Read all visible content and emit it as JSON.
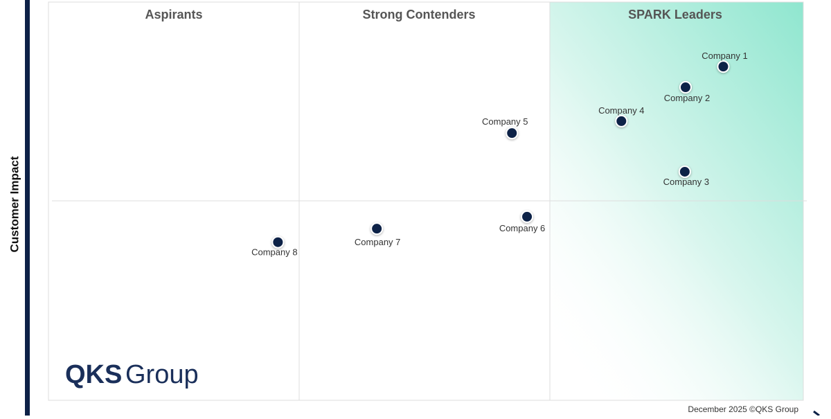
{
  "chart_data": {
    "type": "scatter",
    "quadrant_labels": [
      "Aspirants",
      "Strong Contenders",
      "SPARK Leaders"
    ],
    "y_label": "Customer Impact",
    "labels": [
      "Company 1",
      "Company 2",
      "Company 3",
      "Company 4",
      "Company 5",
      "Company 6",
      "Company 7",
      "Company 8"
    ],
    "x": [
      89.4,
      84.4,
      84.3,
      75.9,
      61.4,
      63.4,
      43.5,
      30.4
    ],
    "values": [
      83.8,
      78.6,
      57.4,
      70.1,
      67.1,
      46.1,
      43.1,
      39.7
    ],
    "color": "#0d2147",
    "xlim": [
      0,
      100
    ],
    "ylim": [
      0,
      100
    ]
  },
  "logo": {
    "primary": "QKS",
    "secondary": "Group"
  },
  "footer": "December 2025 ©QKS Group"
}
